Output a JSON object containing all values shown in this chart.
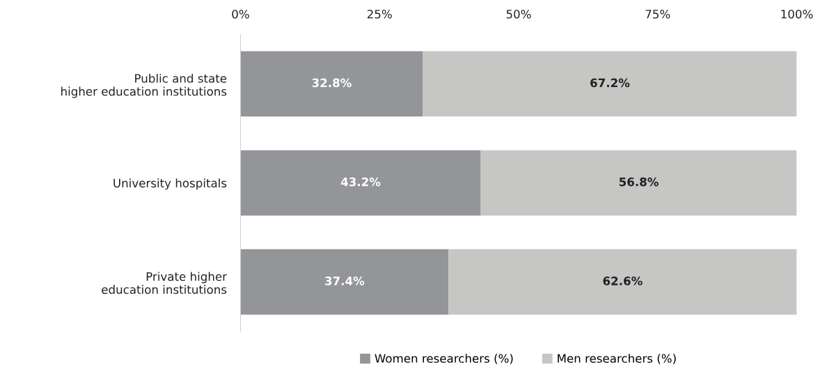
{
  "chart_data": {
    "type": "bar",
    "orientation": "horizontal",
    "stacked": true,
    "categories": [
      "Public and state\nhigher education institutions",
      "University hospitals",
      "Private higher\neducation institutions"
    ],
    "series": [
      {
        "name": "Women researchers (%)",
        "color": "#939598",
        "values": [
          32.8,
          43.2,
          37.4
        ],
        "value_labels": [
          "32.8%",
          "43.2%",
          "37.4%"
        ]
      },
      {
        "name": "Men researchers (%)",
        "color": "#c6c6c5",
        "values": [
          67.2,
          56.8,
          62.6
        ],
        "value_labels": [
          "67.2%",
          "56.8%",
          "62.6%"
        ]
      }
    ],
    "xlim": [
      0,
      100
    ],
    "xticks": [
      {
        "value": 0,
        "label": "0%"
      },
      {
        "value": 25,
        "label": "25%"
      },
      {
        "value": 50,
        "label": "50%"
      },
      {
        "value": 75,
        "label": "75%"
      },
      {
        "value": 100,
        "label": "100%"
      }
    ],
    "grid": false,
    "legend": "bottom"
  }
}
